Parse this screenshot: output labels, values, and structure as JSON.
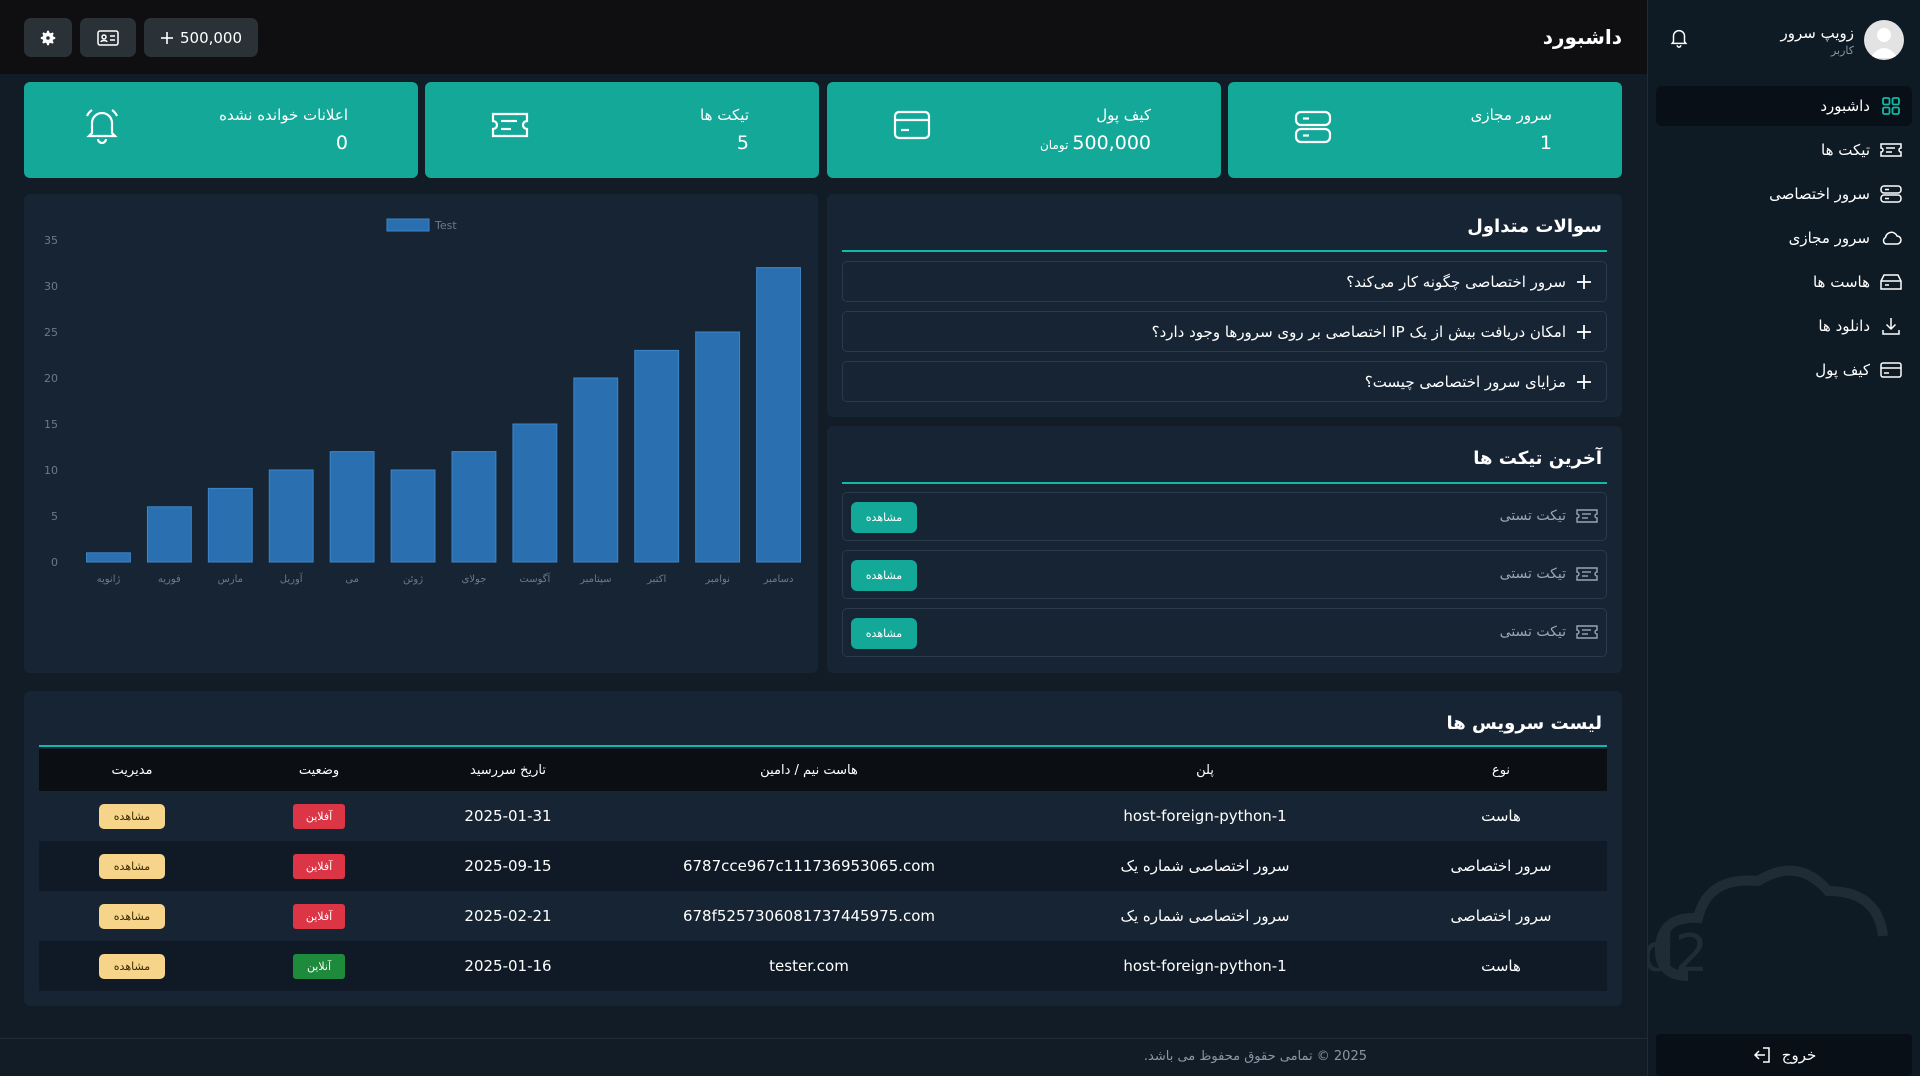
{
  "sidebar": {
    "user_name": "زویپ سرور",
    "user_role": "کاربر",
    "items": [
      {
        "label": "داشبورد",
        "icon": "grid-icon",
        "active": true
      },
      {
        "label": "تیکت ها",
        "icon": "ticket-icon"
      },
      {
        "label": "سرور اختصاصی",
        "icon": "server-icon"
      },
      {
        "label": "سرور مجازی",
        "icon": "cloud-icon"
      },
      {
        "label": "هاست ها",
        "icon": "database-icon"
      },
      {
        "label": "دانلود ها",
        "icon": "download-icon"
      },
      {
        "label": "کیف پول",
        "icon": "wallet-icon"
      }
    ],
    "logout_label": "خروج",
    "watermark_text": "Cloud2"
  },
  "topbar": {
    "title": "داشبورد",
    "balance_label": "500,000"
  },
  "stats": [
    {
      "title": "سرور مجازی",
      "value": "1",
      "unit": "",
      "icon": "server-icon"
    },
    {
      "title": "کیف پول",
      "value": "500,000",
      "unit": "تومان",
      "icon": "wallet-icon"
    },
    {
      "title": "تیکت ها",
      "value": "5",
      "unit": "",
      "icon": "ticket-icon"
    },
    {
      "title": "اعلانات خوانده نشده",
      "value": "0",
      "unit": "",
      "icon": "bell-icon"
    }
  ],
  "faq": {
    "title": "سوالات متداول",
    "items": [
      "سرور اختصاصی چگونه کار می‌کند؟",
      "امکان دریافت بیش از یک IP اختصاصی بر روی سرورها وجود دارد؟",
      "مزایای سرور اختصاصی چیست؟"
    ]
  },
  "tickets": {
    "title": "آخرین تیکت ها",
    "items": [
      {
        "name": "تیکت تستی",
        "button": "مشاهده"
      },
      {
        "name": "تیکت تستی",
        "button": "مشاهده"
      },
      {
        "name": "تیکت تستی",
        "button": "مشاهده"
      }
    ]
  },
  "chart_data": {
    "type": "bar",
    "categories": [
      "ژانویه",
      "فوریه",
      "مارس",
      "آوریل",
      "می",
      "ژوئن",
      "جولای",
      "آگوست",
      "سپتامبر",
      "اکتبر",
      "نوامبر",
      "دسامبر"
    ],
    "series": [
      {
        "name": "Test",
        "values": [
          1,
          6,
          8,
          10,
          12,
          10,
          12,
          15,
          20,
          23,
          25,
          32
        ]
      }
    ],
    "ylim": [
      0,
      35
    ],
    "yticks": [
      0,
      5,
      10,
      15,
      20,
      25,
      30,
      35
    ],
    "legend_position": "top",
    "grid": false,
    "bar_color": "#2a6fb0"
  },
  "services": {
    "title": "لیست سرویس ها",
    "columns": [
      "نوع",
      "پلن",
      "هاست نیم / دامین",
      "تاریخ سررسید",
      "وضعیت",
      "مدیریت"
    ],
    "rows": [
      {
        "type": "هاست",
        "plan": "host-foreign-python-1",
        "domain": "",
        "due": "2025-01-31",
        "status": "آفلاین",
        "status_color": "red",
        "action": "مشاهده"
      },
      {
        "type": "سرور اختصاصی",
        "plan": "سرور اختصاصی شماره یک",
        "domain": "6787cce967c111736953065.com",
        "due": "2025-09-15",
        "status": "آفلاین",
        "status_color": "red",
        "action": "مشاهده"
      },
      {
        "type": "سرور اختصاصی",
        "plan": "سرور اختصاصی شماره یک",
        "domain": "678f5257306081737445975.com",
        "due": "2025-02-21",
        "status": "آفلاین",
        "status_color": "red",
        "action": "مشاهده"
      },
      {
        "type": "هاست",
        "plan": "host-foreign-python-1",
        "domain": "tester.com",
        "due": "2025-01-16",
        "status": "آنلاین",
        "status_color": "green",
        "action": "مشاهده"
      }
    ]
  },
  "footer": {
    "text": "2025 © تمامی حقوق محفوظ می باشد."
  },
  "colors": {
    "accent": "#13a898",
    "sidebar_bg": "#0e1a24",
    "panel_bg": "#162433"
  }
}
